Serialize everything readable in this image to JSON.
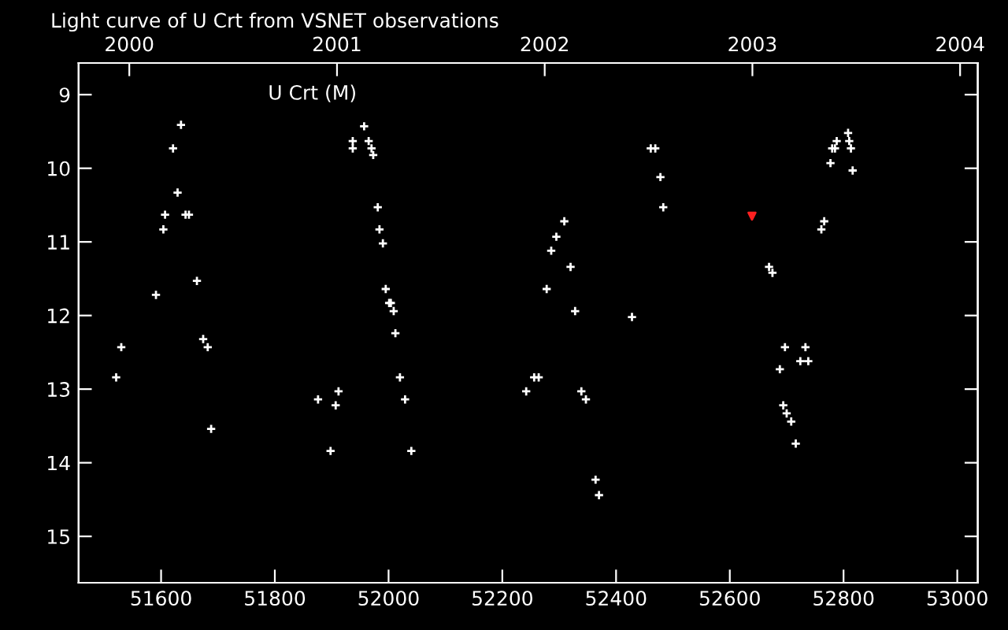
{
  "chart_data": {
    "type": "scatter",
    "title": "Light curve of U Crt from VSNET observations",
    "annotations": [
      "U Crt (M)"
    ],
    "xlim": [
      51455,
      53036
    ],
    "xticks": [
      51600,
      51800,
      52000,
      52200,
      52400,
      52600,
      52800,
      53000
    ],
    "x2lim": [
      1999.756,
      2004.085
    ],
    "x2ticks": [
      2000,
      2001,
      2002,
      2003,
      2004
    ],
    "ylim": [
      15.63,
      8.57
    ],
    "yticks": [
      9,
      10,
      11,
      12,
      13,
      14,
      15
    ],
    "grid": false,
    "marker": "cross",
    "series": [
      {
        "color": "#ffffff",
        "x": [
          51635,
          51621,
          51629,
          51607,
          51643,
          51649,
          51604,
          51663,
          51591,
          51530,
          51521,
          51674,
          51682,
          51688,
          51876,
          51907,
          51912,
          51898,
          51957,
          51937,
          51965,
          51937,
          51970,
          51973,
          51981,
          51984,
          51990,
          51995,
          52001,
          52004,
          52009,
          52012,
          52020,
          52029,
          52040,
          52461,
          52469,
          52478,
          52483,
          52309,
          52295,
          52286,
          52320,
          52278,
          52328,
          52428,
          52256,
          52264,
          52242,
          52339,
          52347,
          52364,
          52370,
          52669,
          52675,
          52808,
          52788,
          52810,
          52780,
          52785,
          52813,
          52777,
          52816,
          52766,
          52761,
          52697,
          52733,
          52724,
          52738,
          52688,
          52694,
          52700,
          52708,
          52716
        ],
        "values": [
          9.41,
          9.73,
          10.33,
          10.63,
          10.63,
          10.63,
          10.83,
          11.53,
          11.72,
          12.43,
          12.84,
          12.32,
          12.43,
          13.54,
          13.14,
          13.22,
          13.03,
          13.84,
          9.43,
          9.63,
          9.63,
          9.73,
          9.73,
          9.82,
          10.53,
          10.83,
          11.02,
          11.64,
          11.83,
          11.83,
          11.94,
          12.24,
          12.84,
          13.14,
          13.84,
          9.73,
          9.73,
          10.12,
          10.53,
          10.72,
          10.93,
          11.12,
          11.34,
          11.64,
          11.94,
          12.02,
          12.84,
          12.84,
          13.03,
          13.03,
          13.14,
          14.23,
          14.44,
          11.34,
          11.42,
          9.52,
          9.63,
          9.63,
          9.73,
          9.73,
          9.73,
          9.93,
          10.03,
          10.72,
          10.83,
          12.43,
          12.43,
          12.62,
          12.62,
          12.73,
          13.22,
          13.33,
          13.44,
          13.74
        ]
      },
      {
        "color": "#ff2020",
        "marker": "triangle",
        "x": [
          52639
        ],
        "values": [
          10.65
        ]
      }
    ]
  }
}
